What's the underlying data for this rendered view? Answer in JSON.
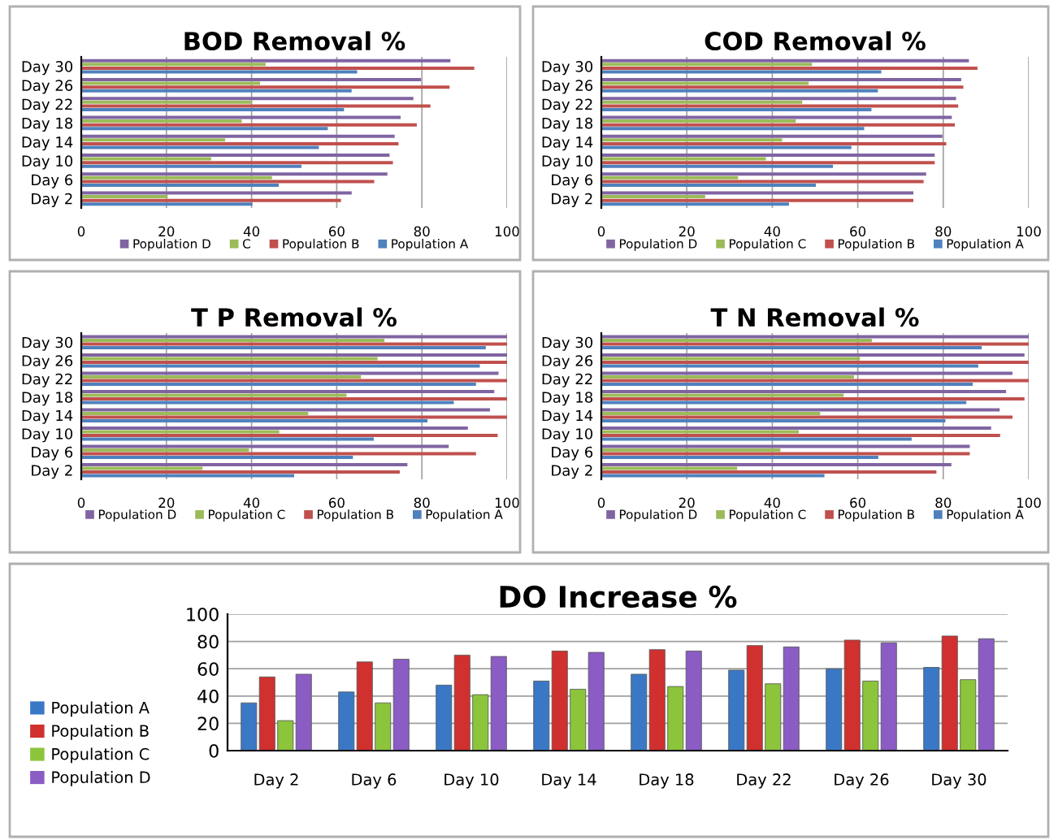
{
  "chart_data": [
    {
      "type": "bar",
      "orientation": "horizontal",
      "title": "BOD Removal %",
      "categories": [
        "Day 30",
        "Day 26",
        "Day 22",
        "Day 18",
        "Day 14",
        "Day 10",
        "Day 6",
        "Day 2"
      ],
      "xlim": [
        0,
        100
      ],
      "xticks": [
        0,
        20,
        40,
        60,
        80,
        100
      ],
      "grid": "x",
      "legend": "bottom",
      "series": [
        {
          "name": "Population A",
          "color": "#4f81bd",
          "values": [
            64.8,
            63.5,
            61.7,
            57.9,
            55.8,
            51.7,
            46.4,
            40.2
          ]
        },
        {
          "name": "Population B",
          "color": "#c0504d",
          "values": [
            92.3,
            86.5,
            82,
            78.8,
            74.5,
            73.2,
            68.8,
            61
          ]
        },
        {
          "name": "C",
          "color": "#9bbb59",
          "values": [
            43.3,
            42,
            40,
            37.7,
            33.8,
            30.5,
            44.8,
            20.3
          ]
        },
        {
          "name": "Population D",
          "color": "#8064a2",
          "values": [
            86.7,
            79.8,
            78,
            75,
            73.6,
            72.4,
            71.9,
            63.5
          ]
        }
      ]
    },
    {
      "type": "bar",
      "orientation": "horizontal",
      "title": "COD Removal %",
      "categories": [
        "Day 30",
        "Day 26",
        "Day 22",
        "Day 18",
        "Day 14",
        "Day 10",
        "Day 6",
        "Day 2"
      ],
      "xlim": [
        0,
        100
      ],
      "xticks": [
        0,
        20,
        40,
        60,
        80,
        100
      ],
      "grid": "x",
      "legend": "bottom",
      "series": [
        {
          "name": "Population A",
          "color": "#4f81bd",
          "values": [
            65.5,
            64.7,
            63.2,
            61.5,
            58.5,
            54.2,
            50.2,
            43.9
          ]
        },
        {
          "name": "Population B",
          "color": "#c0504d",
          "values": [
            88,
            84.7,
            83.5,
            82.7,
            80.7,
            78,
            75.4,
            73
          ]
        },
        {
          "name": "Population C",
          "color": "#9bbb59",
          "values": [
            49.3,
            48.5,
            47,
            45.5,
            42.3,
            38.5,
            32,
            24.3
          ]
        },
        {
          "name": "Population D",
          "color": "#8064a2",
          "values": [
            86,
            84.2,
            83,
            82,
            79.8,
            78,
            76,
            73
          ]
        }
      ]
    },
    {
      "type": "bar",
      "orientation": "horizontal",
      "title": "T P Removal %",
      "categories": [
        "Day 30",
        "Day 26",
        "Day 22",
        "Day 18",
        "Day 14",
        "Day 10",
        "Day 6",
        "Day 2"
      ],
      "xlim": [
        0,
        100
      ],
      "xticks": [
        0,
        20,
        40,
        60,
        80,
        100
      ],
      "grid": "x",
      "legend": "bottom",
      "series": [
        {
          "name": "Population A",
          "color": "#4f81bd",
          "values": [
            95,
            93.6,
            92.7,
            87.5,
            81.3,
            68.7,
            63.8,
            50
          ]
        },
        {
          "name": "Population B",
          "color": "#c0504d",
          "values": [
            100,
            100,
            100,
            100,
            100,
            97.8,
            92.7,
            74.8
          ]
        },
        {
          "name": "Population C",
          "color": "#9bbb59",
          "values": [
            71.2,
            69.6,
            65.7,
            62.3,
            53.3,
            46.5,
            39.4,
            28.5
          ]
        },
        {
          "name": "Population D",
          "color": "#8064a2",
          "values": [
            100,
            100,
            98,
            97,
            96,
            90.8,
            86.3,
            76.6
          ]
        }
      ]
    },
    {
      "type": "bar",
      "orientation": "horizontal",
      "title": "T N Removal %",
      "categories": [
        "Day 30",
        "Day 26",
        "Day 22",
        "Day 18",
        "Day 14",
        "Day 10",
        "Day 6",
        "Day 2"
      ],
      "xlim": [
        0,
        100
      ],
      "xticks": [
        0,
        20,
        40,
        60,
        80,
        100
      ],
      "grid": "x",
      "legend": "bottom",
      "series": [
        {
          "name": "Population A",
          "color": "#4f81bd",
          "values": [
            89,
            88.2,
            86.9,
            85.4,
            80.5,
            72.6,
            64.8,
            52.2
          ]
        },
        {
          "name": "Population B",
          "color": "#c0504d",
          "values": [
            100,
            100,
            100,
            99,
            96.2,
            93.3,
            86.2,
            78.4
          ]
        },
        {
          "name": "Population C",
          "color": "#9bbb59",
          "values": [
            63.3,
            60.5,
            59.1,
            56.7,
            51.2,
            46.2,
            41.9,
            31.8
          ]
        },
        {
          "name": "Population D",
          "color": "#8064a2",
          "values": [
            100,
            99,
            96.2,
            94.7,
            93.2,
            91.2,
            86.2,
            81.9
          ]
        }
      ]
    },
    {
      "type": "bar",
      "title": "DO Increase %",
      "categories": [
        "Day 2",
        "Day 6",
        "Day 10",
        "Day 14",
        "Day 18",
        "Day 22",
        "Day 26",
        "Day 30"
      ],
      "ylim": [
        0,
        100
      ],
      "yticks": [
        0,
        20,
        40,
        60,
        80,
        100
      ],
      "grid": "y",
      "legend": "left",
      "series": [
        {
          "name": "Population A",
          "color": "#3a78c6",
          "values": [
            35,
            43,
            48,
            51,
            56,
            59,
            60,
            61
          ]
        },
        {
          "name": "Population B",
          "color": "#d0302e",
          "values": [
            54,
            65,
            70,
            73,
            74,
            77,
            81,
            84
          ]
        },
        {
          "name": "Population C",
          "color": "#8cc43c",
          "values": [
            22,
            35,
            41,
            45,
            47,
            49,
            51,
            52
          ]
        },
        {
          "name": "Population D",
          "color": "#8a5cc4",
          "values": [
            56,
            67,
            69,
            72,
            73,
            76,
            79,
            82
          ]
        }
      ]
    }
  ]
}
